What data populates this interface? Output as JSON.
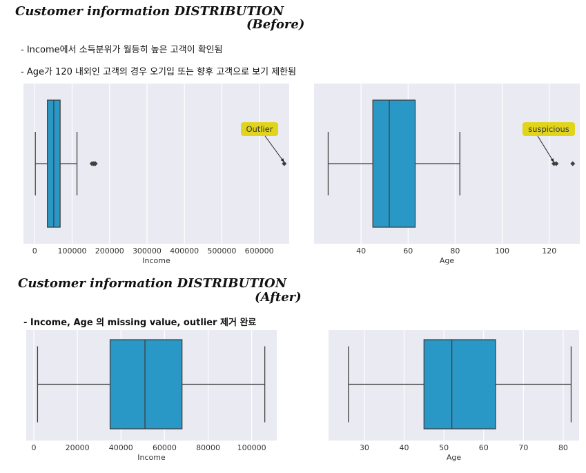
{
  "sections": {
    "before": {
      "title_line1": "Customer information DISTRIBUTION",
      "title_line2": "(Before)",
      "bullets": [
        "- Income에서 소득분위가 월등히 높은 고객이 확인됨",
        "- Age가 120 내외인 고객의 경우 오기입 또는 향후 고객으로 보기 제한됨"
      ]
    },
    "after": {
      "title_line1": "Customer information DISTRIBUTION",
      "title_line2": "(After)",
      "bullets": [
        "- Income, Age 의 missing value, outlier 제거 완료"
      ]
    }
  },
  "colors": {
    "plot_bg": "#eaeaf2",
    "box_fill": "#2a98c6",
    "box_stroke": "#3f3f3f",
    "annotation_bg": "#e0d51c",
    "grid": "#ffffff"
  },
  "chart_data": [
    {
      "type": "boxplot",
      "orientation": "horizontal",
      "xlabel": "Income",
      "xlim": [
        -30000,
        680000
      ],
      "xticks": [
        0,
        100000,
        200000,
        300000,
        400000,
        500000,
        600000
      ],
      "xtick_labels": [
        "0",
        "100000",
        "200000",
        "300000",
        "400000",
        "500000",
        "600000"
      ],
      "grid": true,
      "box": {
        "whisker_low": 1700,
        "q1": 34000,
        "median": 51000,
        "q3": 68000,
        "whisker_high": 113000
      },
      "outliers": [
        153000,
        157000,
        160000,
        162000,
        666666
      ],
      "annotation": {
        "text": "Outlier",
        "points_to": 666666
      }
    },
    {
      "type": "boxplot",
      "orientation": "horizontal",
      "xlabel": "Age",
      "xlim": [
        20,
        133
      ],
      "xticks": [
        40,
        60,
        80,
        100,
        120
      ],
      "xtick_labels": [
        "40",
        "60",
        "80",
        "100",
        "120"
      ],
      "grid": true,
      "box": {
        "whisker_low": 26,
        "q1": 45,
        "median": 52,
        "q3": 63,
        "whisker_high": 82
      },
      "outliers": [
        122,
        123,
        130
      ],
      "annotation": {
        "text": "suspicious",
        "points_to": 122
      }
    },
    {
      "type": "boxplot",
      "orientation": "horizontal",
      "xlabel": "Income",
      "xlim": [
        -3500,
        111500
      ],
      "xticks": [
        0,
        20000,
        40000,
        60000,
        80000,
        100000
      ],
      "xtick_labels": [
        "0",
        "20000",
        "40000",
        "60000",
        "80000",
        "100000"
      ],
      "grid": true,
      "box": {
        "whisker_low": 1700,
        "q1": 35000,
        "median": 51000,
        "q3": 68000,
        "whisker_high": 106000
      },
      "outliers": []
    },
    {
      "type": "boxplot",
      "orientation": "horizontal",
      "xlabel": "Age",
      "xlim": [
        21,
        84
      ],
      "xticks": [
        30,
        40,
        50,
        60,
        70,
        80
      ],
      "xtick_labels": [
        "30",
        "40",
        "50",
        "60",
        "70",
        "80"
      ],
      "grid": true,
      "box": {
        "whisker_low": 26,
        "q1": 45,
        "median": 52,
        "q3": 63,
        "whisker_high": 82
      },
      "outliers": []
    }
  ]
}
